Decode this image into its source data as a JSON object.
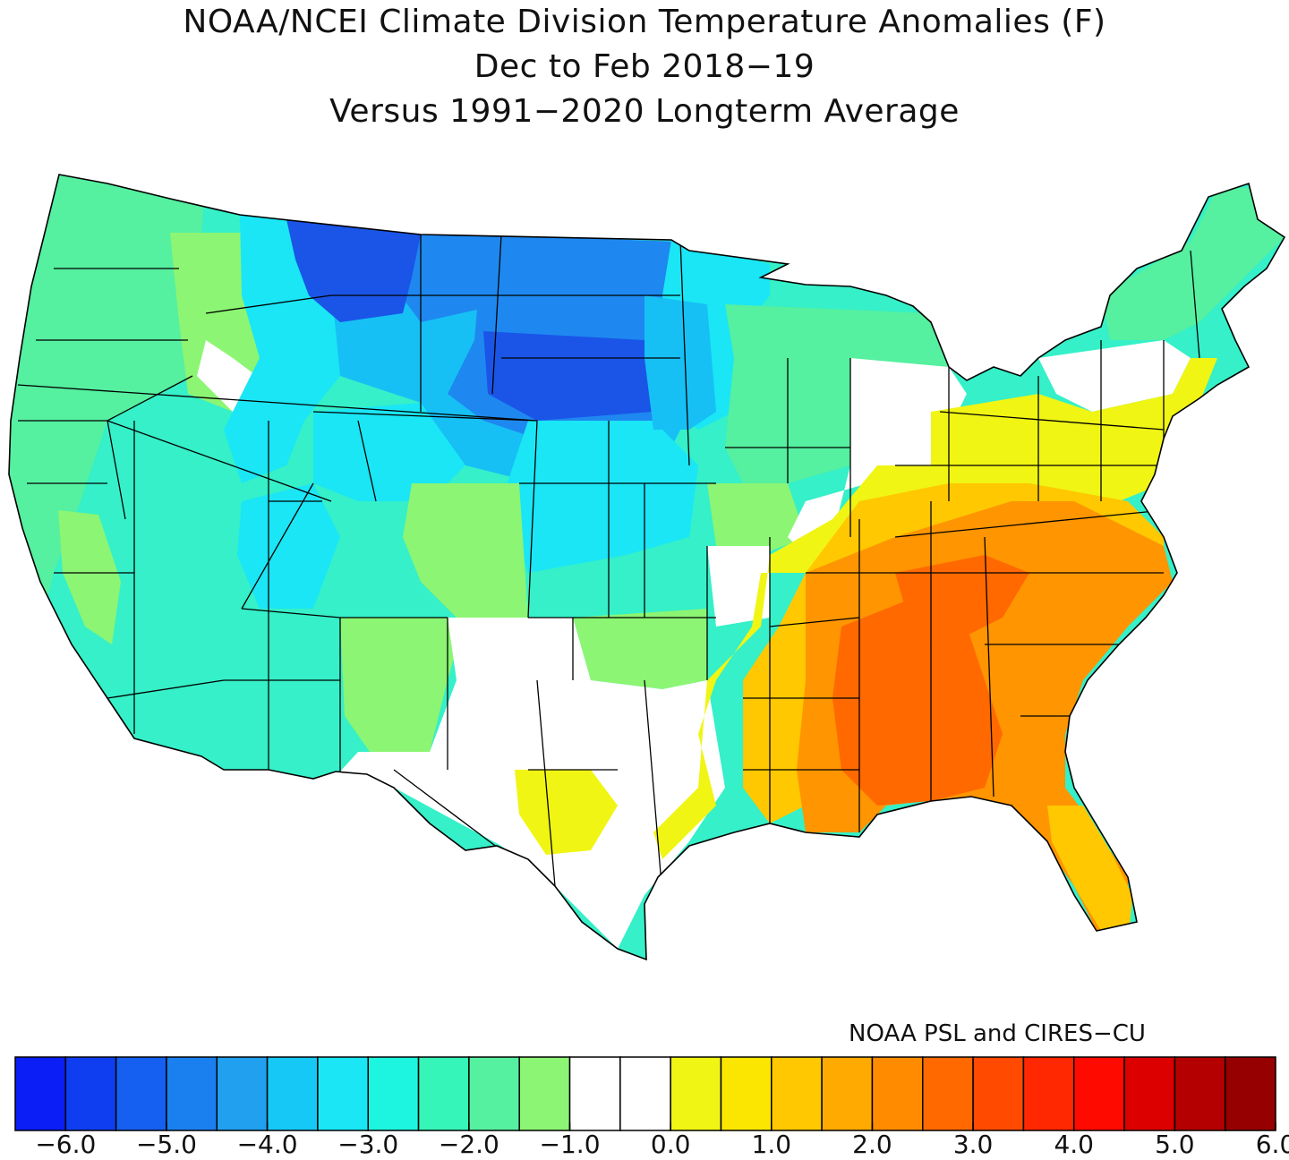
{
  "title": {
    "line1": "NOAA/NCEI Climate Division Temperature Anomalies (F)",
    "line2": "Dec to Feb 2018−19",
    "line3": "Versus 1991−2020 Longterm Average"
  },
  "credit": "NOAA PSL and CIRES−CU",
  "colorbar": {
    "colors": [
      "#0a1ef5",
      "#0f3ef0",
      "#1560f0",
      "#1a80f0",
      "#21a0f0",
      "#16c8f5",
      "#1ae6f5",
      "#1ef5e0",
      "#35f5b8",
      "#55f0a0",
      "#8cf573",
      "#ffffff",
      "#ffffff",
      "#f0f514",
      "#fae600",
      "#ffc800",
      "#ffaa00",
      "#ff8c00",
      "#ff6900",
      "#ff4a00",
      "#ff2800",
      "#ff0a00",
      "#dc0000",
      "#b40000",
      "#960000"
    ],
    "tick_labels": [
      "−6.0",
      "−5.0",
      "−4.0",
      "−3.0",
      "−2.0",
      "−1.0",
      "0.0",
      "1.0",
      "2.0",
      "3.0",
      "4.0",
      "5.0",
      "6.0"
    ]
  },
  "palette": {
    "deep_blue": "#1a55e8",
    "blue": "#1e88f0",
    "light_blue": "#16c0f5",
    "cyan": "#1ae6f5",
    "aqua": "#35f0c8",
    "seafoam": "#4cf0aa",
    "green": "#8cf573",
    "neutral": "#ffffff",
    "yellow": "#f0f514",
    "gold": "#ffc800",
    "orange": "#ff9500",
    "red_orange": "#ff6900"
  }
}
